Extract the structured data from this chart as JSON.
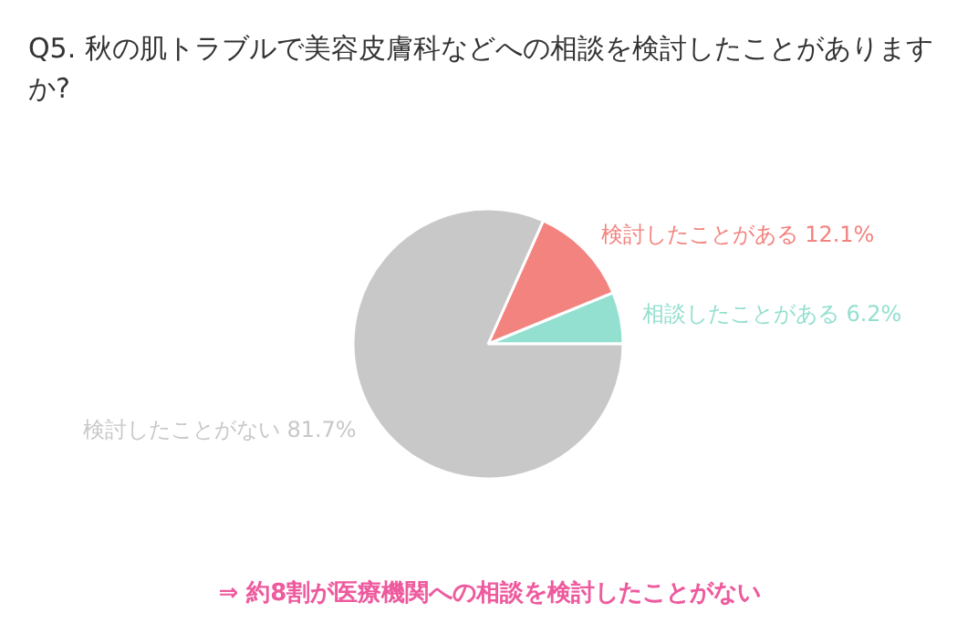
{
  "chart_data": {
    "type": "pie",
    "title": "Q5. 秋の肌トラブルで美容皮膚科などへの相談を検討したことがありますか?",
    "categories": [
      "相談したことがある",
      "検討したことがある",
      "検討したことがない"
    ],
    "values": [
      6.2,
      12.1,
      81.7
    ],
    "value_labels": [
      "6.2%",
      "12.1%",
      "81.7%"
    ],
    "colors": [
      "#94e0d0",
      "#f3837f",
      "#c8c8c8"
    ],
    "annotations": [
      "⇒ 約8割が医療機関への相談を検討したことがない"
    ]
  }
}
